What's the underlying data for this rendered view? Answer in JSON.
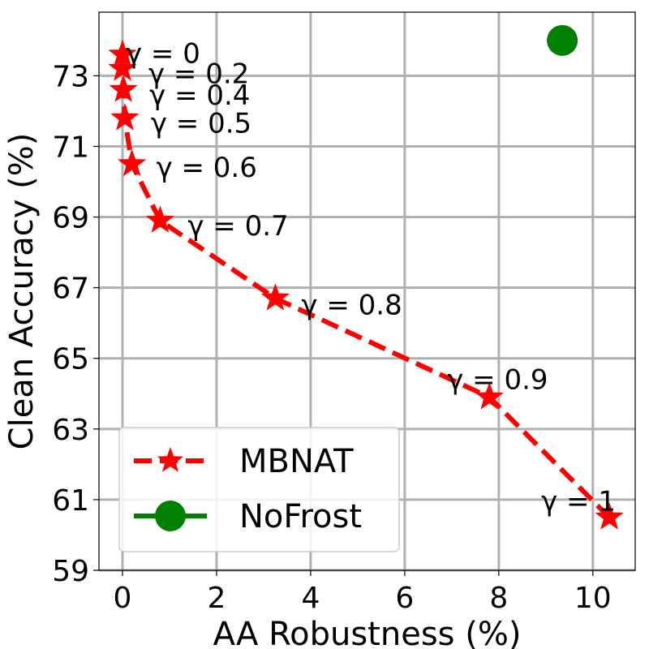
{
  "chart_data": {
    "type": "scatter",
    "title": "",
    "xlabel": "AA Robustness (%)",
    "ylabel": "Clean Accuracy (%)",
    "xlim": [
      -0.5,
      10.9
    ],
    "ylim": [
      59,
      74.8
    ],
    "xticks": [
      0,
      2,
      4,
      6,
      8,
      10
    ],
    "yticks": [
      59,
      61,
      63,
      65,
      67,
      69,
      71,
      73
    ],
    "grid": true,
    "legend_position": "lower-left",
    "series": [
      {
        "name": "MBNAT",
        "style": "dashed-line-star-markers",
        "color": "#ff0000",
        "points": [
          {
            "x": 0.0,
            "y": 73.6,
            "label": "γ = 0"
          },
          {
            "x": 0.0,
            "y": 73.2,
            "label": "γ = 0.2"
          },
          {
            "x": 0.02,
            "y": 72.6,
            "label": "γ = 0.4"
          },
          {
            "x": 0.05,
            "y": 71.8,
            "label": "γ = 0.5"
          },
          {
            "x": 0.2,
            "y": 70.5,
            "label": "γ = 0.6"
          },
          {
            "x": 0.8,
            "y": 68.9,
            "label": "γ = 0.7"
          },
          {
            "x": 3.25,
            "y": 66.7,
            "label": "γ = 0.8"
          },
          {
            "x": 7.8,
            "y": 63.9,
            "label": "γ = 0.9"
          },
          {
            "x": 10.35,
            "y": 60.5,
            "label": "γ = 1"
          }
        ]
      },
      {
        "name": "NoFrost",
        "style": "circle-marker",
        "color": "#008000",
        "points": [
          {
            "x": 9.35,
            "y": 74.0
          }
        ]
      }
    ]
  }
}
